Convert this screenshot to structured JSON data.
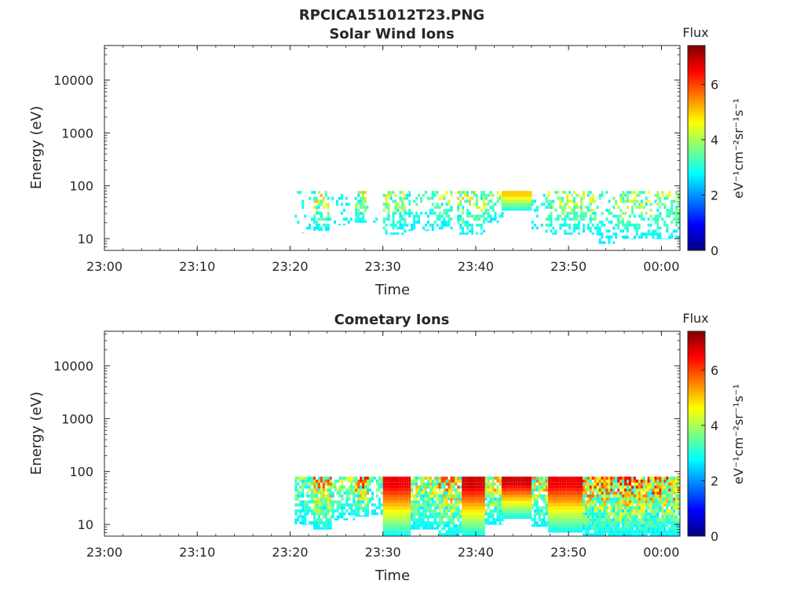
{
  "figure": {
    "title": "RPCICA151012T23.PNG"
  },
  "colorbar": {
    "label": "Flux",
    "unit_label": "eV⁻¹cm⁻²sr⁻¹s⁻¹",
    "range": [
      0,
      7.4
    ],
    "ticks": [
      "0",
      "2",
      "4",
      "6"
    ],
    "tick_values": [
      0,
      2,
      4,
      6
    ],
    "colormap": "jet",
    "colors": [
      "#00007f",
      "#0000ff",
      "#007fff",
      "#00ffff",
      "#7fff7f",
      "#ffff00",
      "#ff7f00",
      "#ff0000",
      "#7f0000"
    ]
  },
  "chart_data": [
    {
      "type": "heatmap",
      "title": "Solar Wind Ions",
      "xlabel": "Time",
      "ylabel": "Energy (eV)",
      "xticks": [
        "23:00",
        "23:10",
        "23:20",
        "23:30",
        "23:40",
        "23:50",
        "00:00"
      ],
      "yticks": [
        "10",
        "100",
        "1000",
        "10000"
      ],
      "ytick_values": [
        10,
        100,
        1000,
        10000
      ],
      "xlim": [
        "23:00",
        "00:02"
      ],
      "ylim": [
        6,
        45000
      ],
      "yscale": "log",
      "grid": false,
      "colorbar": "right",
      "bursts": [
        {
          "start": "23:20.5",
          "end": "23:22.5",
          "e_low": 13,
          "e_high": 80,
          "peak": 3.4,
          "density": 0.18
        },
        {
          "start": "23:22.5",
          "end": "23:24.2",
          "e_low": 14,
          "e_high": 80,
          "peak": 5.2,
          "density": 0.55
        },
        {
          "start": "23:24.2",
          "end": "23:27.0",
          "e_low": 18,
          "e_high": 80,
          "peak": 3.3,
          "density": 0.12
        },
        {
          "start": "23:27.0",
          "end": "23:28.2",
          "e_low": 20,
          "e_high": 80,
          "peak": 4.9,
          "density": 0.6
        },
        {
          "start": "23:28.2",
          "end": "23:29.5",
          "e_low": 20,
          "e_high": 80,
          "peak": 3.3,
          "density": 0.1
        },
        {
          "start": "23:30.0",
          "end": "23:32.5",
          "e_low": 12,
          "e_high": 80,
          "peak": 4.8,
          "density": 0.5
        },
        {
          "start": "23:32.5",
          "end": "23:35.5",
          "e_low": 14,
          "e_high": 80,
          "peak": 3.6,
          "density": 0.35
        },
        {
          "start": "23:35.5",
          "end": "23:37.5",
          "e_low": 15,
          "e_high": 80,
          "peak": 4.6,
          "density": 0.5
        },
        {
          "start": "23:38.0",
          "end": "23:41.0",
          "e_low": 12,
          "e_high": 80,
          "peak": 5.0,
          "density": 0.55
        },
        {
          "start": "23:41.0",
          "end": "23:42.8",
          "e_low": 20,
          "e_high": 80,
          "peak": 4.4,
          "density": 0.4
        },
        {
          "start": "23:42.8",
          "end": "23:46.0",
          "e_low": 34,
          "e_high": 80,
          "peak": 5.0,
          "density": 1.0
        },
        {
          "start": "23:46.0",
          "end": "23:47.5",
          "e_low": 15,
          "e_high": 80,
          "peak": 3.2,
          "density": 0.15
        },
        {
          "start": "23:47.5",
          "end": "23:53.0",
          "e_low": 12,
          "e_high": 80,
          "peak": 4.8,
          "density": 0.5
        },
        {
          "start": "23:53.0",
          "end": "23:55.0",
          "e_low": 8,
          "e_high": 80,
          "peak": 3.6,
          "density": 0.3
        },
        {
          "start": "23:55.0",
          "end": "00:02.0",
          "e_low": 10,
          "e_high": 80,
          "peak": 4.6,
          "density": 0.45
        }
      ]
    },
    {
      "type": "heatmap",
      "title": "Cometary Ions",
      "xlabel": "Time",
      "ylabel": "Energy (eV)",
      "xticks": [
        "23:00",
        "23:10",
        "23:20",
        "23:30",
        "23:40",
        "23:50",
        "00:00"
      ],
      "yticks": [
        "10",
        "100",
        "1000",
        "10000"
      ],
      "ytick_values": [
        10,
        100,
        1000,
        10000
      ],
      "xlim": [
        "23:00",
        "00:02"
      ],
      "ylim": [
        6,
        45000
      ],
      "yscale": "log",
      "grid": false,
      "colorbar": "right",
      "bursts": [
        {
          "start": "23:20.5",
          "end": "23:22.5",
          "e_low": 10,
          "e_high": 80,
          "peak": 4.2,
          "density": 0.7
        },
        {
          "start": "23:22.5",
          "end": "23:24.5",
          "e_low": 8,
          "e_high": 80,
          "peak": 6.0,
          "density": 0.95
        },
        {
          "start": "23:24.5",
          "end": "23:27.0",
          "e_low": 12,
          "e_high": 80,
          "peak": 4.5,
          "density": 0.6
        },
        {
          "start": "23:27.0",
          "end": "23:28.5",
          "e_low": 14,
          "e_high": 80,
          "peak": 6.3,
          "density": 0.9
        },
        {
          "start": "23:28.5",
          "end": "23:30.0",
          "e_low": 15,
          "e_high": 80,
          "peak": 4.0,
          "density": 0.5
        },
        {
          "start": "23:30.0",
          "end": "23:33.0",
          "e_low": 6,
          "e_high": 80,
          "peak": 6.6,
          "density": 1.0
        },
        {
          "start": "23:33.0",
          "end": "23:36.0",
          "e_low": 8,
          "e_high": 80,
          "peak": 5.2,
          "density": 0.85
        },
        {
          "start": "23:36.0",
          "end": "23:38.5",
          "e_low": 6,
          "e_high": 80,
          "peak": 6.0,
          "density": 0.9
        },
        {
          "start": "23:38.5",
          "end": "23:41.0",
          "e_low": 6,
          "e_high": 80,
          "peak": 6.8,
          "density": 1.0
        },
        {
          "start": "23:41.0",
          "end": "23:42.8",
          "e_low": 10,
          "e_high": 80,
          "peak": 5.5,
          "density": 0.8
        },
        {
          "start": "23:42.8",
          "end": "23:46.0",
          "e_low": 13,
          "e_high": 80,
          "peak": 6.8,
          "density": 1.0
        },
        {
          "start": "23:46.0",
          "end": "23:47.8",
          "e_low": 9,
          "e_high": 80,
          "peak": 5.6,
          "density": 0.85
        },
        {
          "start": "23:47.8",
          "end": "23:51.5",
          "e_low": 7,
          "e_high": 80,
          "peak": 6.6,
          "density": 1.0
        },
        {
          "start": "23:51.5",
          "end": "23:55.0",
          "e_low": 6,
          "e_high": 80,
          "peak": 6.2,
          "density": 0.95
        },
        {
          "start": "23:55.0",
          "end": "00:02.0",
          "e_low": 6,
          "e_high": 80,
          "peak": 6.5,
          "density": 0.95
        }
      ]
    }
  ]
}
